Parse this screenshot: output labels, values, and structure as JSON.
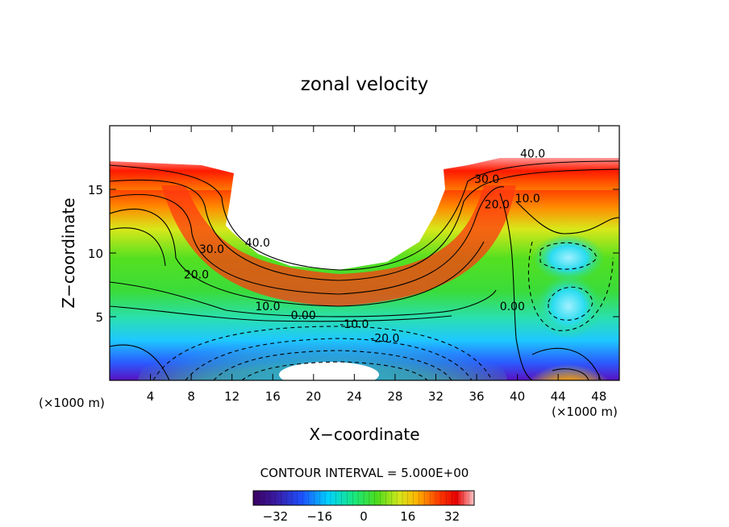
{
  "chart_data": {
    "type": "contour",
    "title": "zonal velocity",
    "xlabel": "X−coordinate",
    "ylabel": "Z−coordinate",
    "x_unit_left": "(×1000 m)",
    "x_unit_right": "(×1000 m)",
    "xlim": [
      0,
      50
    ],
    "ylim": [
      0,
      20
    ],
    "x_ticks": [
      4,
      8,
      12,
      16,
      20,
      24,
      28,
      32,
      36,
      40,
      44,
      48
    ],
    "y_ticks": [
      5,
      10,
      15
    ],
    "contour_interval_text": "CONTOUR INTERVAL = 5.000E+00",
    "colorbar": {
      "min": -40,
      "max": 40,
      "ticks": [
        -32,
        -16,
        0,
        16,
        32
      ]
    },
    "contour_labels": [
      {
        "text": "40.0",
        "x": 41.5,
        "y": 17.5
      },
      {
        "text": "30.0",
        "x": 37.0,
        "y": 15.5
      },
      {
        "text": "20.0",
        "x": 38.0,
        "y": 13.5
      },
      {
        "text": "10.0",
        "x": 41.0,
        "y": 14.0
      },
      {
        "text": "40.0",
        "x": 14.5,
        "y": 10.5
      },
      {
        "text": "30.0",
        "x": 10.0,
        "y": 10.0
      },
      {
        "text": "20.0",
        "x": 8.5,
        "y": 8.0
      },
      {
        "text": "10.0",
        "x": 15.5,
        "y": 5.5
      },
      {
        "text": "0.00",
        "x": 19.0,
        "y": 4.8
      },
      {
        "text": "-10.0",
        "x": 24.0,
        "y": 4.1
      },
      {
        "text": "-20.0",
        "x": 27.0,
        "y": 3.0
      },
      {
        "text": "0.00",
        "x": 39.5,
        "y": 5.5
      }
    ],
    "terrain_description_points_xz": [
      [
        0,
        17.5
      ],
      [
        6,
        17.3
      ],
      [
        9,
        16.5
      ],
      [
        11.5,
        16
      ],
      [
        12,
        13
      ],
      [
        13,
        12
      ],
      [
        14.5,
        11
      ],
      [
        17,
        9.5
      ],
      [
        20,
        8.8
      ],
      [
        24,
        8.8
      ],
      [
        28,
        9.5
      ],
      [
        31,
        11
      ],
      [
        32.5,
        13
      ],
      [
        33,
        16
      ],
      [
        35,
        17
      ],
      [
        40,
        17.5
      ],
      [
        50,
        17.5
      ]
    ]
  }
}
